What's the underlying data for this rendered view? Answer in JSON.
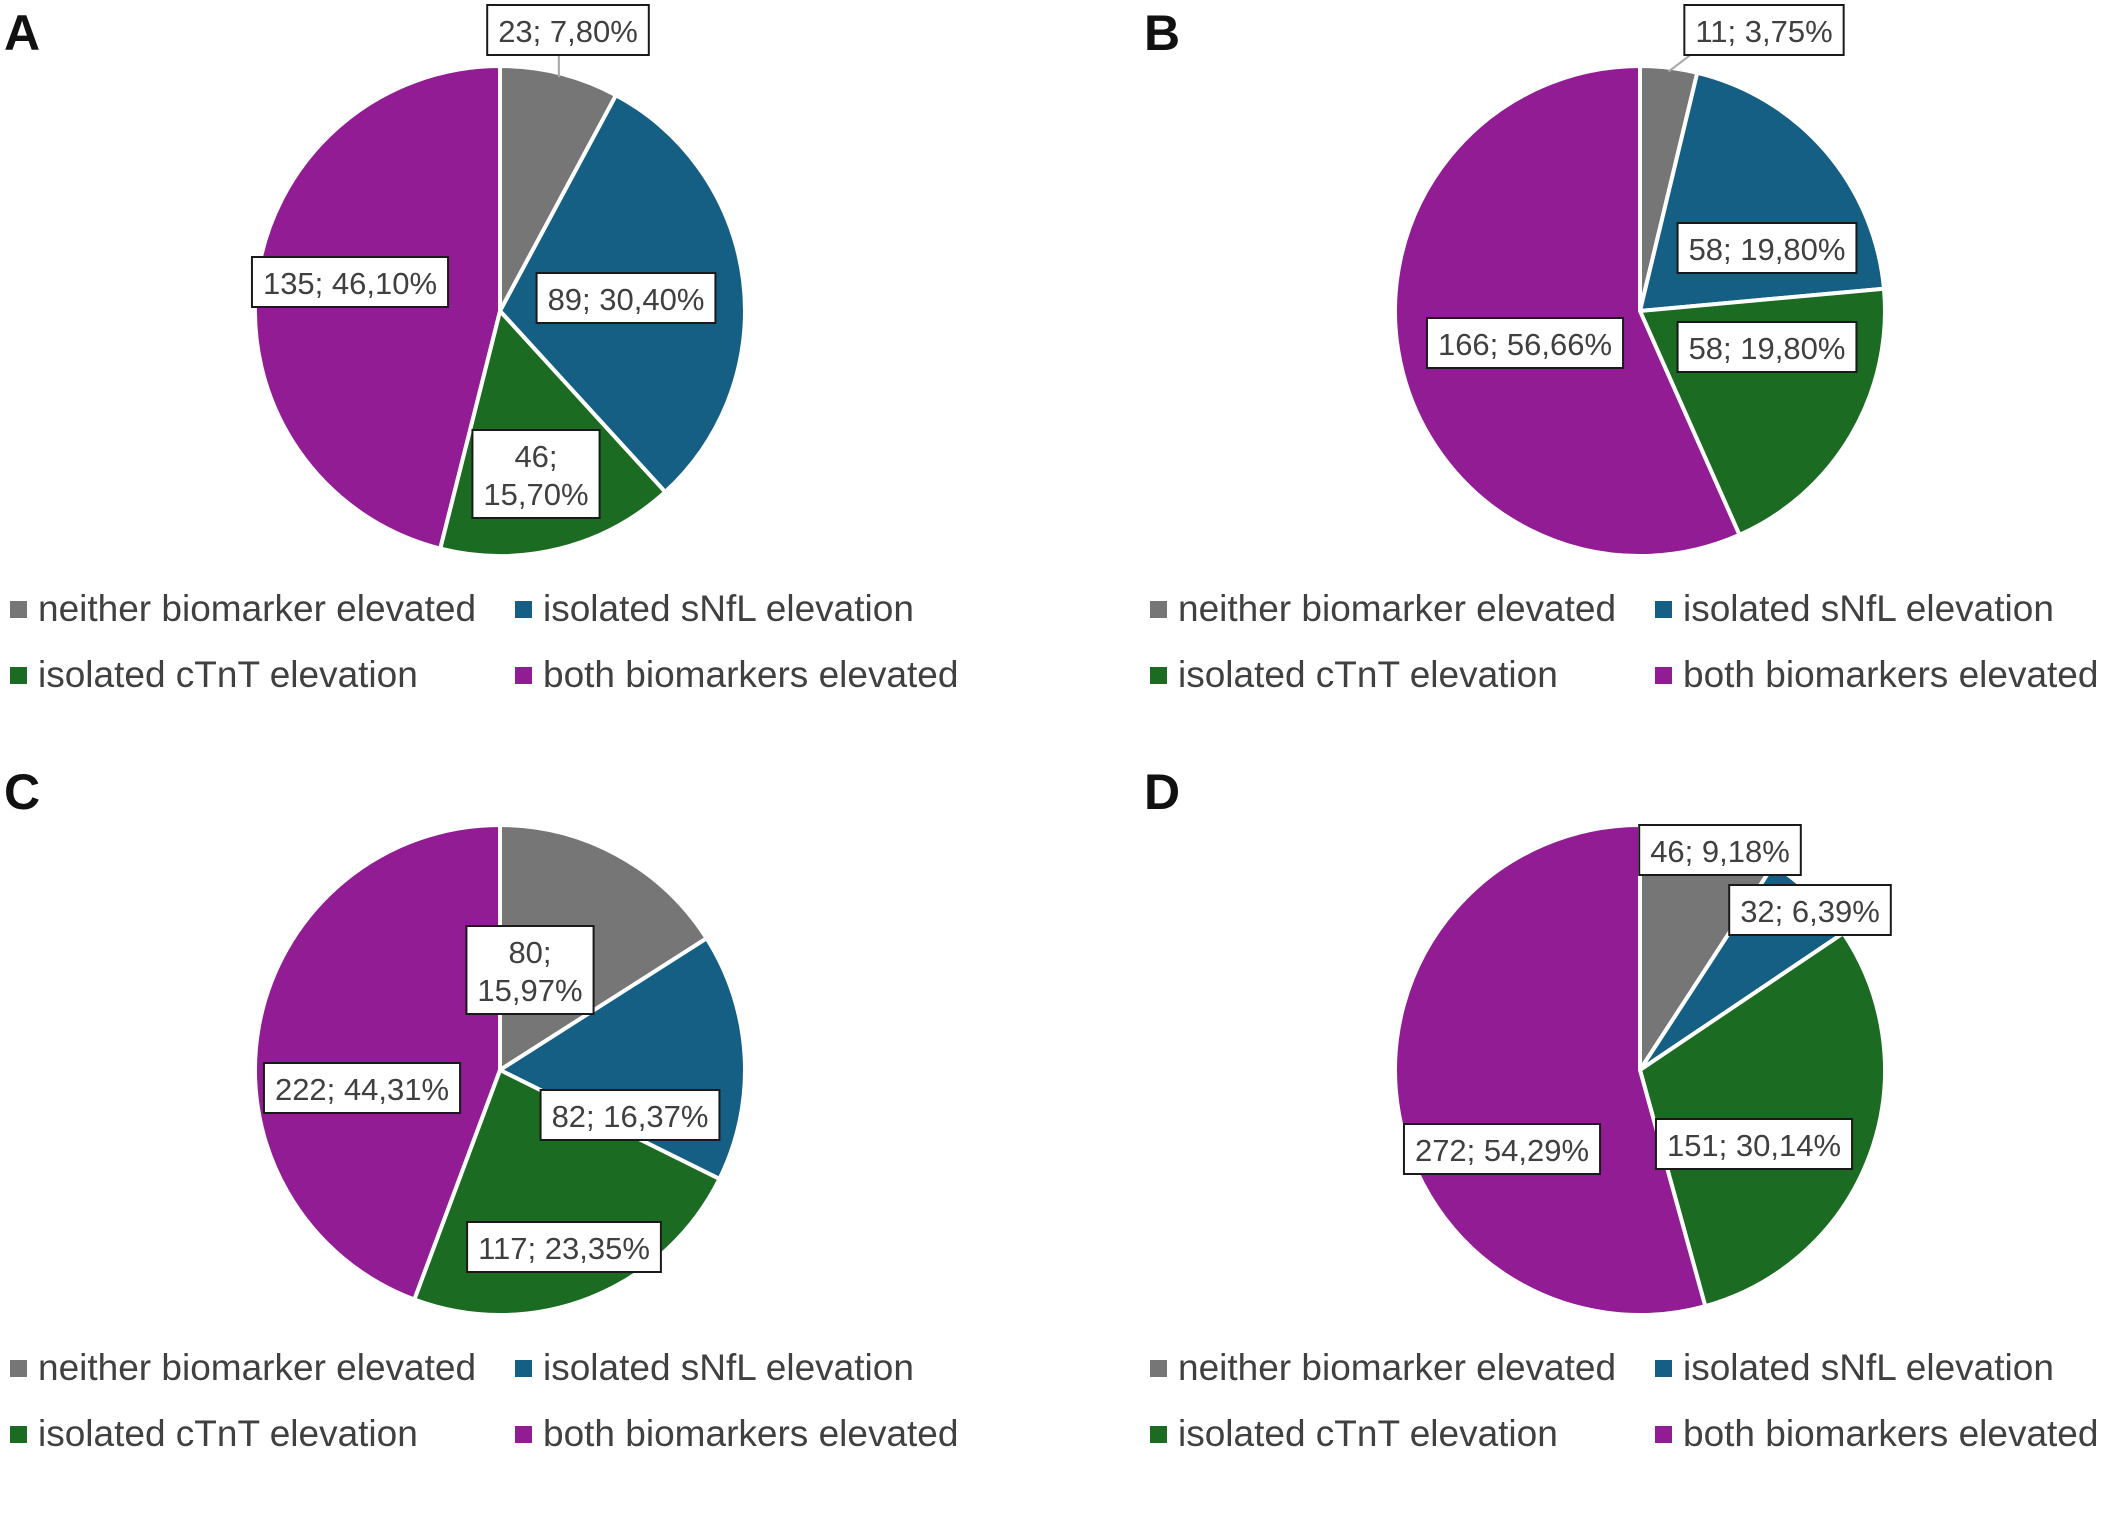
{
  "legend_colors": {
    "neither biomarker elevated": "#767676",
    "isolated sNfL elevation": "#155f84",
    "isolated cTnT elevation": "#1b6b22",
    "both biomarkers elevated": "#921c94"
  },
  "chart_data": [
    {
      "type": "pie",
      "panel": "A",
      "legend_placement": "bottom",
      "categories": [
        "neither biomarker elevated",
        "isolated sNfL elevation",
        "isolated cTnT elevation",
        "both biomarkers elevated"
      ],
      "values": [
        23,
        89,
        46,
        135
      ],
      "percents": [
        7.8,
        30.4,
        15.7,
        46.1
      ],
      "data_labels": [
        [
          "23; 7,80%"
        ],
        [
          "89; 30,40%"
        ],
        [
          "46;",
          "15,70%"
        ],
        [
          "135; 46,10%"
        ]
      ]
    },
    {
      "type": "pie",
      "panel": "B",
      "legend_placement": "bottom",
      "categories": [
        "neither biomarker elevated",
        "isolated sNfL elevation",
        "isolated cTnT elevation",
        "both biomarkers elevated"
      ],
      "values": [
        11,
        58,
        58,
        166
      ],
      "percents": [
        3.75,
        19.8,
        19.8,
        56.66
      ],
      "data_labels": [
        [
          "11; 3,75%"
        ],
        [
          "58; 19,80%"
        ],
        [
          "58; 19,80%"
        ],
        [
          "166; 56,66%"
        ]
      ]
    },
    {
      "type": "pie",
      "panel": "C",
      "legend_placement": "bottom",
      "categories": [
        "neither biomarker elevated",
        "isolated sNfL elevation",
        "isolated cTnT elevation",
        "both biomarkers elevated"
      ],
      "values": [
        80,
        82,
        117,
        222
      ],
      "percents": [
        15.97,
        16.37,
        23.35,
        44.31
      ],
      "data_labels": [
        [
          "80;",
          "15,97%"
        ],
        [
          "82; 16,37%"
        ],
        [
          "117; 23,35%"
        ],
        [
          "222; 44,31%"
        ]
      ]
    },
    {
      "type": "pie",
      "panel": "D",
      "legend_placement": "bottom",
      "categories": [
        "neither biomarker elevated",
        "isolated sNfL elevation",
        "isolated cTnT elevation",
        "both biomarkers elevated"
      ],
      "values": [
        46,
        32,
        151,
        272
      ],
      "percents": [
        9.18,
        6.39,
        30.14,
        54.29
      ],
      "data_labels": [
        [
          "46; 9,18%"
        ],
        [
          "32; 6,39%"
        ],
        [
          "151; 30,14%"
        ],
        [
          "272; 54,29%"
        ]
      ]
    }
  ]
}
